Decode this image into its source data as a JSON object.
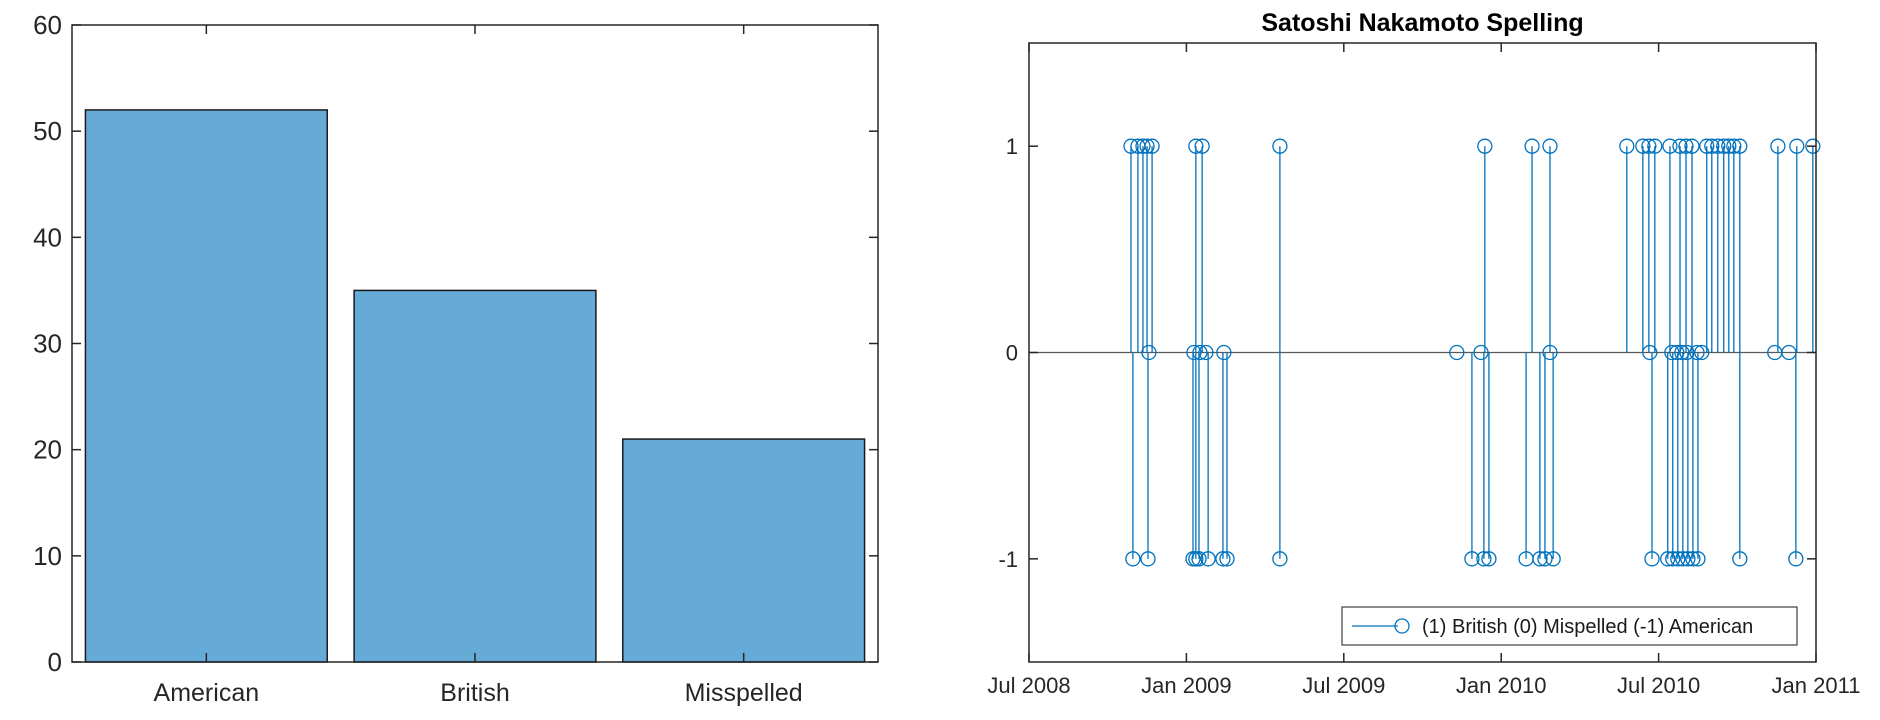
{
  "page": {
    "background": "#ffffff",
    "description": "Two MATLAB-style figures side by side: a bar chart of spelling counts and a stem plot of Satoshi Nakamoto post spellings over time"
  },
  "chart_data": [
    {
      "type": "bar",
      "title": "",
      "categories": [
        "American",
        "British",
        "Misspelled"
      ],
      "values": [
        52,
        35,
        21
      ],
      "xlabel": "",
      "ylabel": "",
      "ylim": [
        0,
        60
      ],
      "yticks": [
        0,
        10,
        20,
        30,
        40,
        50,
        60
      ],
      "grid": false,
      "box": true,
      "bar_color": "#66aad7",
      "bar_edge_color": "#1a1a1a",
      "axis_color": "#262626",
      "tick_label_color": "#262626"
    },
    {
      "type": "stem",
      "title": "Satoshi Nakamoto Spelling",
      "xlabel": "",
      "ylabel": "",
      "xlim": [
        2008.5,
        2011.0
      ],
      "ylim": [
        -1.5,
        1.5
      ],
      "xticks": [
        {
          "t": 2008.5,
          "label": "Jul 2008"
        },
        {
          "t": 2009.0,
          "label": "Jan 2009"
        },
        {
          "t": 2009.5,
          "label": "Jul 2009"
        },
        {
          "t": 2010.0,
          "label": "Jan 2010"
        },
        {
          "t": 2010.5,
          "label": "Jul 2010"
        },
        {
          "t": 2011.0,
          "label": "Jan 2011"
        }
      ],
      "yticks": [
        1,
        0,
        -1
      ],
      "grid": false,
      "box": true,
      "stem_color": "#0072BD",
      "baseline_value": 0,
      "baseline_color": "#595959",
      "axis_color": "#262626",
      "tick_label_color": "#262626",
      "legend": {
        "label": "(1) British (0) Mispelled (-1) American",
        "position": "southeast"
      },
      "series": [
        {
          "name": "British",
          "value": 1,
          "times": [
            2008.824,
            2008.846,
            2008.862,
            2008.875,
            2008.891,
            2009.03,
            2009.05,
            2009.297,
            2009.948,
            2010.098,
            2010.155,
            2010.399,
            2010.45,
            2010.469,
            2010.488,
            2010.536,
            2010.568,
            2010.587,
            2010.606,
            2010.653,
            2010.669,
            2010.688,
            2010.707,
            2010.723,
            2010.739,
            2010.758,
            2010.879,
            2010.939,
            2010.99
          ]
        },
        {
          "name": "Mispelled",
          "value": 0,
          "times": [
            2008.881,
            2009.024,
            2009.043,
            2009.062,
            2009.119,
            2009.859,
            2009.936,
            2010.155,
            2010.472,
            2010.542,
            2010.558,
            2010.574,
            2010.59,
            2010.622,
            2010.637,
            2010.869,
            2010.914
          ]
        },
        {
          "name": "American",
          "value": -1,
          "times": [
            2008.83,
            2008.878,
            2009.021,
            2009.03,
            2009.04,
            2009.069,
            2009.116,
            2009.129,
            2009.297,
            2009.907,
            2009.945,
            2009.961,
            2010.079,
            2010.123,
            2010.139,
            2010.165,
            2010.479,
            2010.529,
            2010.545,
            2010.561,
            2010.577,
            2010.593,
            2010.609,
            2010.625,
            2010.758,
            2010.936
          ]
        }
      ]
    }
  ]
}
